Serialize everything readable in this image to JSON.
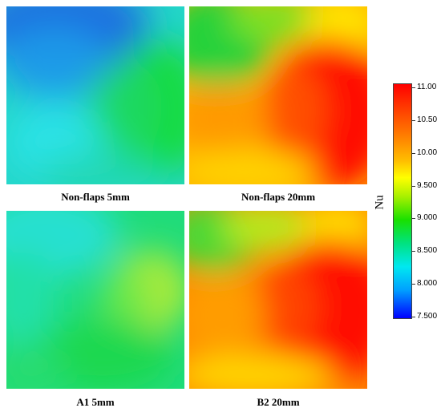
{
  "panels": [
    {
      "caption": "Non-flaps 5mm",
      "scheme": "blue-cyan-green"
    },
    {
      "caption": "Non-flaps 20mm",
      "scheme": "green-yellow-red"
    },
    {
      "caption": "A1 5mm",
      "scheme": "cyan-green-yellow"
    },
    {
      "caption": "B2 20mm",
      "scheme": "green-yellow-red"
    }
  ],
  "colorbar": {
    "title": "Nu",
    "ticks": [
      "11.00",
      "10.50",
      "10.00",
      "9.500",
      "9.000",
      "8.500",
      "8.000",
      "7.500"
    ],
    "colors": {
      "max": "#ff0000",
      "high": "#ffff00",
      "mid": "#19e000",
      "low": "#00e8f0",
      "min": "#0000ff"
    }
  }
}
